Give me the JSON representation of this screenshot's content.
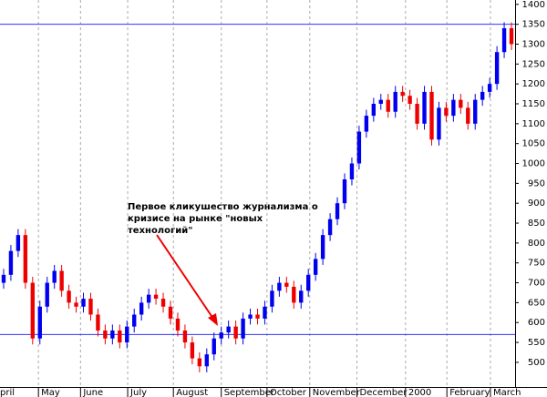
{
  "chart_data": {
    "type": "candlestick",
    "annotation": [
      "Первое кликушество журнализма о",
      "кризисе на рынке \"новых",
      "технологий\""
    ],
    "x": [
      0.5,
      1.5,
      2.5,
      3.5,
      4.5,
      5.5,
      6.5,
      7.5,
      8.5,
      9.5,
      10.5,
      11.5,
      12.5,
      13.5,
      14.5,
      15.5,
      16.5,
      17.5,
      18.5,
      19.5,
      20.5,
      21.5,
      22.5,
      23.5,
      24.5,
      25.5,
      26.5,
      27.5,
      28.5,
      29.5,
      30.5,
      31.5,
      32.5,
      33.5,
      34.5,
      35.5,
      36.5,
      37.5,
      38.5,
      39.5,
      40.5,
      41.5,
      42.5,
      43.5,
      44.5,
      45.5,
      46.5,
      47.5,
      48.5,
      49.5,
      50.5,
      51.5,
      52.5,
      53.5,
      54.5,
      55.5,
      56.5,
      57.5,
      58.5,
      59.5,
      60.5,
      61.5,
      62.5,
      63.5,
      64.5,
      65.5,
      66.5,
      67.5,
      68.5,
      69.5,
      70.5
    ],
    "open": [
      700,
      720,
      780,
      820,
      700,
      560,
      640,
      700,
      730,
      680,
      650,
      640,
      660,
      620,
      580,
      560,
      580,
      550,
      590,
      620,
      650,
      670,
      660,
      640,
      610,
      580,
      550,
      510,
      490,
      520,
      560,
      575,
      590,
      560,
      610,
      620,
      610,
      640,
      680,
      700,
      690,
      650,
      680,
      720,
      760,
      820,
      860,
      900,
      960,
      1000,
      1080,
      1120,
      1150,
      1160,
      1130,
      1180,
      1170,
      1150,
      1100,
      1180,
      1060,
      1140,
      1120,
      1160,
      1140,
      1100,
      1160,
      1180,
      1200,
      1280,
      1340
    ],
    "high": [
      735,
      795,
      835,
      835,
      715,
      655,
      715,
      745,
      745,
      695,
      665,
      675,
      675,
      635,
      595,
      595,
      595,
      605,
      635,
      665,
      685,
      685,
      675,
      655,
      625,
      595,
      565,
      525,
      535,
      575,
      590,
      605,
      605,
      625,
      635,
      635,
      655,
      695,
      715,
      715,
      705,
      695,
      735,
      775,
      835,
      875,
      915,
      975,
      1015,
      1095,
      1135,
      1165,
      1175,
      1175,
      1195,
      1195,
      1185,
      1165,
      1195,
      1195,
      1155,
      1155,
      1175,
      1175,
      1155,
      1175,
      1195,
      1215,
      1295,
      1355,
      1355
    ],
    "low": [
      685,
      705,
      765,
      685,
      545,
      545,
      625,
      685,
      665,
      635,
      625,
      625,
      605,
      565,
      545,
      545,
      535,
      535,
      575,
      605,
      635,
      645,
      625,
      595,
      565,
      535,
      495,
      475,
      475,
      505,
      545,
      560,
      545,
      545,
      595,
      595,
      595,
      625,
      665,
      675,
      635,
      635,
      665,
      705,
      745,
      805,
      845,
      885,
      945,
      985,
      1065,
      1105,
      1135,
      1115,
      1115,
      1155,
      1135,
      1085,
      1085,
      1045,
      1045,
      1105,
      1105,
      1125,
      1085,
      1085,
      1145,
      1165,
      1185,
      1265,
      1285
    ],
    "close": [
      720,
      780,
      820,
      700,
      560,
      640,
      700,
      730,
      680,
      650,
      640,
      660,
      620,
      580,
      560,
      580,
      550,
      590,
      620,
      650,
      670,
      660,
      640,
      610,
      580,
      550,
      510,
      490,
      520,
      560,
      575,
      590,
      560,
      610,
      620,
      610,
      640,
      680,
      700,
      690,
      650,
      680,
      720,
      760,
      820,
      860,
      900,
      960,
      1000,
      1080,
      1120,
      1150,
      1160,
      1130,
      1180,
      1170,
      1150,
      1100,
      1180,
      1060,
      1140,
      1120,
      1160,
      1140,
      1100,
      1160,
      1180,
      1200,
      1280,
      1340,
      1300
    ],
    "up_color": "#0000ee",
    "down_color": "#ee0000",
    "hlines": [
      1350,
      570
    ],
    "hline_color": "#3333ff",
    "xlim": [
      0,
      71
    ],
    "xticks": [
      {
        "value": -0.5,
        "label": "pril"
      },
      {
        "value": 5.3,
        "label": "May"
      },
      {
        "value": 11.1,
        "label": "June"
      },
      {
        "value": 17.6,
        "label": "July"
      },
      {
        "value": 23.9,
        "label": "August"
      },
      {
        "value": 30.5,
        "label": "September"
      },
      {
        "value": 36.8,
        "label": "October"
      },
      {
        "value": 42.7,
        "label": "November"
      },
      {
        "value": 49.2,
        "label": "December"
      },
      {
        "value": 55.9,
        "label": "2000"
      },
      {
        "value": 61.6,
        "label": "February"
      },
      {
        "value": 67.6,
        "label": "March"
      }
    ],
    "ylim": [
      438,
      1411
    ],
    "yticks": [
      500,
      550,
      600,
      650,
      700,
      750,
      800,
      850,
      900,
      950,
      1000,
      1050,
      1100,
      1150,
      1200,
      1250,
      1300,
      1350,
      1400
    ],
    "grid": true
  }
}
